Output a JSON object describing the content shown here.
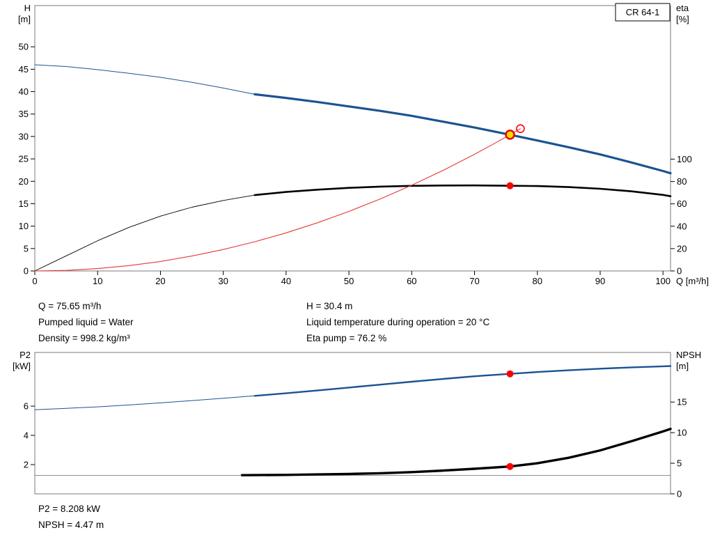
{
  "colors": {
    "blue": "#1a5392",
    "black": "#000000",
    "red": "#e53935",
    "gray": "#808080",
    "axis": "#7a7a7a",
    "tick": "#000000",
    "marker_red": "#ff0000",
    "marker_yellow": "#ffd800",
    "marker_ring": "#e60000"
  },
  "info": {
    "left": [
      "Q = 75.65 m³/h",
      "Pumped liquid = Water",
      "Density = 998.2 kg/m³"
    ],
    "right": [
      "H = 30.4 m",
      "Liquid temperature during operation = 20 °C",
      "Eta pump = 76.2 %"
    ],
    "bottom": [
      "P2 = 8.208 kW",
      "NPSH = 4.47 m"
    ]
  },
  "chart_data": [
    {
      "type": "line",
      "title": "CR 64-1",
      "x_axis": {
        "label": "Q [m³/h]",
        "min": 0,
        "max": 101.2,
        "ticks": [
          0,
          10,
          20,
          30,
          40,
          50,
          60,
          70,
          80,
          90,
          100
        ]
      },
      "left_axis": {
        "label_line1": "H",
        "label_line2": "[m]",
        "min": 0,
        "max": 59.2,
        "ticks": [
          0,
          5,
          10,
          15,
          20,
          25,
          30,
          35,
          40,
          45,
          50
        ]
      },
      "right_axis": {
        "label_line1": "eta",
        "label_line2": "[%]",
        "min": 0,
        "max": 237.3,
        "ticks": [
          0,
          20,
          40,
          60,
          80,
          100
        ]
      },
      "legend": "off",
      "grid": "off",
      "series": [
        {
          "name": "head-curve-thin",
          "axis": "left",
          "color": "blue",
          "width": 1,
          "points": [
            [
              0,
              46
            ],
            [
              5,
              45.6
            ],
            [
              10,
              44.9
            ],
            [
              15,
              44.1
            ],
            [
              20,
              43.2
            ],
            [
              25,
              42.1
            ],
            [
              30,
              40.8
            ],
            [
              35,
              39.4
            ]
          ]
        },
        {
          "name": "head-curve-thick",
          "axis": "left",
          "color": "blue",
          "width": 3.2,
          "points": [
            [
              35,
              39.4
            ],
            [
              40,
              38.6
            ],
            [
              45,
              37.7
            ],
            [
              50,
              36.7
            ],
            [
              55,
              35.7
            ],
            [
              60,
              34.6
            ],
            [
              65,
              33.3
            ],
            [
              70,
              32.0
            ],
            [
              75.65,
              30.4
            ],
            [
              80,
              29.1
            ],
            [
              85,
              27.6
            ],
            [
              90,
              26.0
            ],
            [
              95,
              24.2
            ],
            [
              100,
              22.3
            ],
            [
              101.2,
              21.8
            ]
          ]
        },
        {
          "name": "eta-curve-thin",
          "axis": "right",
          "color": "black",
          "width": 0.9,
          "points": [
            [
              0,
              0
            ],
            [
              5,
              13.5
            ],
            [
              10,
              27
            ],
            [
              15,
              39
            ],
            [
              20,
              49
            ],
            [
              25,
              57
            ],
            [
              30,
              63
            ],
            [
              35,
              67.8
            ]
          ]
        },
        {
          "name": "eta-curve-thick",
          "axis": "right",
          "color": "black",
          "width": 2.6,
          "points": [
            [
              35,
              67.8
            ],
            [
              40,
              70.6
            ],
            [
              45,
              72.7
            ],
            [
              50,
              74.3
            ],
            [
              55,
              75.4
            ],
            [
              60,
              76.1
            ],
            [
              65,
              76.4
            ],
            [
              70,
              76.5
            ],
            [
              75.65,
              76.2
            ],
            [
              80,
              75.9
            ],
            [
              85,
              75.0
            ],
            [
              90,
              73.5
            ],
            [
              95,
              71.2
            ],
            [
              100,
              68.0
            ],
            [
              101.2,
              66.8
            ]
          ]
        },
        {
          "name": "system-curve",
          "axis": "left",
          "color": "red",
          "width": 1.1,
          "points": [
            [
              0,
              0
            ],
            [
              5,
              0.13
            ],
            [
              10,
              0.53
            ],
            [
              15,
              1.2
            ],
            [
              20,
              2.12
            ],
            [
              25,
              3.32
            ],
            [
              30,
              4.78
            ],
            [
              35,
              6.51
            ],
            [
              40,
              8.5
            ],
            [
              45,
              10.76
            ],
            [
              50,
              13.28
            ],
            [
              55,
              16.07
            ],
            [
              60,
              19.12
            ],
            [
              65,
              22.44
            ],
            [
              70,
              26.03
            ],
            [
              73,
              28.31
            ],
            [
              75.65,
              30.4
            ],
            [
              77.3,
              31.74
            ]
          ]
        }
      ],
      "markers": [
        {
          "name": "system-curve-end-marker",
          "x": 77.3,
          "v": 31.74,
          "axis": "left",
          "style": "open"
        },
        {
          "name": "duty-point-marker",
          "x": 75.65,
          "v": 30.4,
          "axis": "left",
          "style": "duty"
        },
        {
          "name": "eta-point-marker",
          "x": 75.65,
          "v": 76.2,
          "axis": "right",
          "style": "dot"
        }
      ]
    },
    {
      "type": "line",
      "title": "",
      "x_axis": {
        "label": "",
        "min": 0,
        "max": 101.2,
        "ticks": []
      },
      "left_axis": {
        "label_line1": "P2",
        "label_line2": "[kW]",
        "min": 0,
        "max": 9.67,
        "ticks": [
          2,
          4,
          6
        ]
      },
      "right_axis": {
        "label_line1": "NPSH",
        "label_line2": "[m]",
        "min": 0,
        "max": 23.1,
        "ticks": [
          0,
          5,
          10,
          15
        ]
      },
      "legend": "off",
      "grid": "off",
      "series": [
        {
          "name": "p2-curve-thin",
          "axis": "left",
          "color": "blue",
          "width": 1,
          "points": [
            [
              0,
              5.75
            ],
            [
              5,
              5.85
            ],
            [
              10,
              5.95
            ],
            [
              15,
              6.08
            ],
            [
              20,
              6.22
            ],
            [
              25,
              6.38
            ],
            [
              30,
              6.54
            ],
            [
              35,
              6.7
            ]
          ]
        },
        {
          "name": "p2-curve-thick",
          "axis": "left",
          "color": "blue",
          "width": 2.4,
          "points": [
            [
              35,
              6.7
            ],
            [
              40,
              6.88
            ],
            [
              45,
              7.07
            ],
            [
              50,
              7.27
            ],
            [
              55,
              7.47
            ],
            [
              60,
              7.67
            ],
            [
              65,
              7.86
            ],
            [
              70,
              8.04
            ],
            [
              75.65,
              8.208
            ],
            [
              80,
              8.33
            ],
            [
              85,
              8.45
            ],
            [
              90,
              8.56
            ],
            [
              95,
              8.65
            ],
            [
              100,
              8.72
            ],
            [
              101.2,
              8.74
            ]
          ]
        },
        {
          "name": "npsh-baseline",
          "axis": "right",
          "color": "gray",
          "width": 0.9,
          "points": [
            [
              0,
              3.0
            ],
            [
              101.2,
              3.0
            ]
          ]
        },
        {
          "name": "npsh-curve-thick",
          "axis": "right",
          "color": "black",
          "width": 3.4,
          "points": [
            [
              33,
              3.05
            ],
            [
              40,
              3.1
            ],
            [
              45,
              3.17
            ],
            [
              50,
              3.25
            ],
            [
              55,
              3.37
            ],
            [
              60,
              3.55
            ],
            [
              65,
              3.8
            ],
            [
              70,
              4.1
            ],
            [
              75.65,
              4.47
            ],
            [
              80,
              5.0
            ],
            [
              85,
              5.9
            ],
            [
              90,
              7.1
            ],
            [
              95,
              8.6
            ],
            [
              100,
              10.2
            ],
            [
              101.2,
              10.6
            ]
          ]
        }
      ],
      "markers": [
        {
          "name": "p2-point-marker",
          "x": 75.65,
          "v": 8.208,
          "axis": "left",
          "style": "dot"
        },
        {
          "name": "npsh-point-marker",
          "x": 75.65,
          "v": 4.47,
          "axis": "right",
          "style": "dot"
        }
      ]
    }
  ]
}
